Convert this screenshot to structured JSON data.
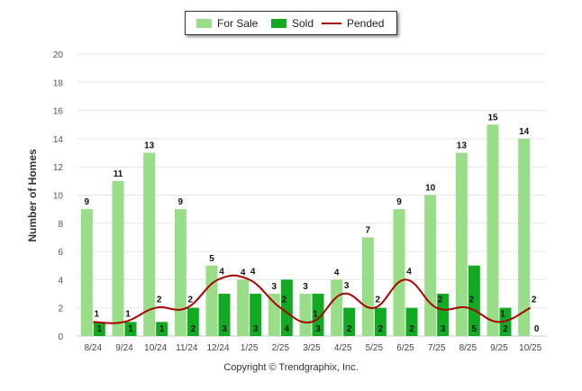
{
  "chart_data": {
    "type": "bar",
    "ylabel": "Number of Homes",
    "ylim": [
      0,
      20
    ],
    "yticks": [
      0,
      2,
      4,
      6,
      8,
      10,
      12,
      14,
      16,
      18,
      20
    ],
    "categories": [
      "8/24",
      "9/24",
      "10/24",
      "11/24",
      "12/24",
      "1/25",
      "2/25",
      "3/25",
      "4/25",
      "5/25",
      "6/25",
      "7/25",
      "8/25",
      "9/25",
      "10/25"
    ],
    "series": [
      {
        "name": "For Sale",
        "kind": "bar",
        "color": "#99dd88",
        "values": [
          9,
          11,
          13,
          9,
          5,
          4,
          3,
          3,
          4,
          7,
          9,
          10,
          13,
          15,
          14
        ]
      },
      {
        "name": "Sold",
        "kind": "bar",
        "color": "#11aa22",
        "values": [
          1,
          1,
          1,
          2,
          3,
          3,
          4,
          3,
          2,
          2,
          2,
          3,
          5,
          2,
          0
        ]
      },
      {
        "name": "Pended",
        "kind": "line",
        "color": "#aa0000",
        "values": [
          1,
          1,
          2,
          2,
          4,
          4,
          2,
          1,
          3,
          2,
          4,
          2,
          2,
          1,
          2
        ]
      }
    ],
    "legend_position": "top-center",
    "grid": true
  },
  "footer": {
    "copyright": "Copyright © Trendgraphix, Inc."
  }
}
